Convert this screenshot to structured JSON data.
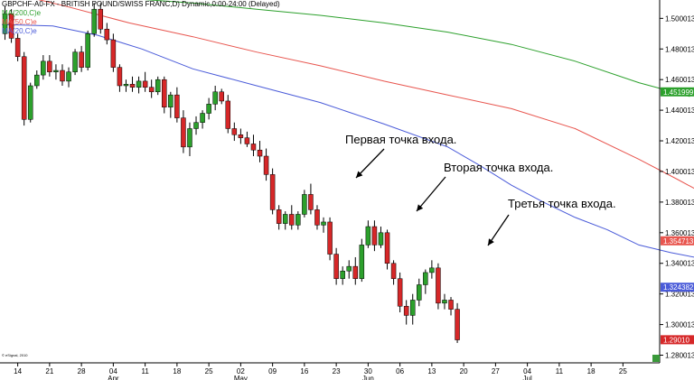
{
  "header": {
    "title": "GBPCHF-A0-FX - BRITISH POUND/SWISS FRANC,D) Dynamic,0:00-24:00 (Delayed)",
    "ma200": "MA(200,C)e",
    "ma50": "MA(50,C)e",
    "ma20": "MA(20,C)e"
  },
  "colors": {
    "ma200": "#2ca02c",
    "ma50": "#e8554e",
    "ma20": "#4a5bd9",
    "up": "#2ca02c",
    "down": "#d62728"
  },
  "annotations": [
    {
      "text": "Первая точка входа."
    },
    {
      "text": "Вторая точка входа."
    },
    {
      "text": "Третья точка входа."
    }
  ],
  "copyright": "© eSignal, 2010",
  "chart_data": {
    "type": "candlestick",
    "ylim": [
      1.275,
      1.512
    ],
    "y_ticks": [
      "1.500013",
      "1.480013",
      "1.460013",
      "1.440013",
      "1.420013",
      "1.400013",
      "1.380013",
      "1.360013",
      "1.340013",
      "1.320013",
      "1.300013",
      "1.280013"
    ],
    "x_ticks": [
      "14",
      "21",
      "28",
      "04",
      "11",
      "18",
      "25",
      "02",
      "09",
      "16",
      "23",
      "30",
      "06",
      "13",
      "20",
      "27",
      "04",
      "11",
      "18",
      "25"
    ],
    "month_labels": [
      "Apr",
      "May",
      "Jun",
      "Jul"
    ],
    "price_labels": [
      {
        "text": "1.451999",
        "value": 1.451999,
        "color": "#2ca02c"
      },
      {
        "text": "1.354713",
        "value": 1.354713,
        "color": "#e8554e"
      },
      {
        "text": "1.324382",
        "value": 1.324382,
        "color": "#4a5bd9"
      },
      {
        "text": "1.29010",
        "value": 1.2901,
        "color": "#d62728"
      }
    ],
    "ma200": [
      [
        0,
        1.519
      ],
      [
        10,
        1.516
      ],
      [
        20,
        1.513
      ],
      [
        30,
        1.51
      ],
      [
        40,
        1.506
      ],
      [
        50,
        1.502
      ],
      [
        60,
        1.497
      ],
      [
        70,
        1.491
      ],
      [
        80,
        1.483
      ],
      [
        90,
        1.472
      ],
      [
        100,
        1.458
      ],
      [
        108,
        1.449
      ]
    ],
    "ma50": [
      [
        0,
        1.518
      ],
      [
        10,
        1.508
      ],
      [
        20,
        1.497
      ],
      [
        30,
        1.488
      ],
      [
        40,
        1.478
      ],
      [
        50,
        1.469
      ],
      [
        60,
        1.459
      ],
      [
        70,
        1.45
      ],
      [
        80,
        1.441
      ],
      [
        90,
        1.428
      ],
      [
        100,
        1.408
      ],
      [
        106,
        1.395
      ],
      [
        110,
        1.386
      ],
      [
        115,
        1.376
      ],
      [
        120,
        1.365
      ],
      [
        124,
        1.357
      ]
    ],
    "ma20": [
      [
        0,
        1.496
      ],
      [
        8,
        1.495
      ],
      [
        15,
        1.489
      ],
      [
        22,
        1.48
      ],
      [
        30,
        1.467
      ],
      [
        40,
        1.456
      ],
      [
        50,
        1.445
      ],
      [
        60,
        1.431
      ],
      [
        70,
        1.416
      ],
      [
        75,
        1.404
      ],
      [
        80,
        1.391
      ],
      [
        85,
        1.38
      ],
      [
        90,
        1.37
      ],
      [
        95,
        1.362
      ],
      [
        100,
        1.352
      ],
      [
        105,
        1.347
      ],
      [
        110,
        1.343
      ],
      [
        115,
        1.338
      ],
      [
        120,
        1.33
      ],
      [
        124,
        1.325
      ]
    ],
    "candles": [
      [
        1.49,
        1.508,
        1.486,
        1.503
      ],
      [
        1.503,
        1.506,
        1.484,
        1.487
      ],
      [
        1.487,
        1.49,
        1.472,
        1.475
      ],
      [
        1.475,
        1.478,
        1.43,
        1.434
      ],
      [
        1.434,
        1.458,
        1.432,
        1.456
      ],
      [
        1.456,
        1.466,
        1.454,
        1.463
      ],
      [
        1.463,
        1.476,
        1.46,
        1.472
      ],
      [
        1.472,
        1.476,
        1.462,
        1.465
      ],
      [
        1.465,
        1.47,
        1.46,
        1.466
      ],
      [
        1.466,
        1.47,
        1.456,
        1.459
      ],
      [
        1.459,
        1.468,
        1.455,
        1.465
      ],
      [
        1.465,
        1.48,
        1.463,
        1.478
      ],
      [
        1.478,
        1.482,
        1.465,
        1.468
      ],
      [
        1.468,
        1.492,
        1.466,
        1.49
      ],
      [
        1.49,
        1.51,
        1.488,
        1.506
      ],
      [
        1.506,
        1.51,
        1.49,
        1.493
      ],
      [
        1.493,
        1.497,
        1.483,
        1.486
      ],
      [
        1.486,
        1.49,
        1.465,
        1.468
      ],
      [
        1.468,
        1.47,
        1.452,
        1.456
      ],
      [
        1.456,
        1.46,
        1.452,
        1.457
      ],
      [
        1.457,
        1.462,
        1.452,
        1.455
      ],
      [
        1.455,
        1.462,
        1.451,
        1.459
      ],
      [
        1.459,
        1.465,
        1.452,
        1.455
      ],
      [
        1.455,
        1.46,
        1.448,
        1.452
      ],
      [
        1.452,
        1.462,
        1.45,
        1.46
      ],
      [
        1.46,
        1.462,
        1.438,
        1.442
      ],
      [
        1.442,
        1.452,
        1.435,
        1.45
      ],
      [
        1.45,
        1.455,
        1.432,
        1.435
      ],
      [
        1.435,
        1.44,
        1.412,
        1.416
      ],
      [
        1.416,
        1.432,
        1.41,
        1.428
      ],
      [
        1.428,
        1.436,
        1.424,
        1.432
      ],
      [
        1.432,
        1.44,
        1.428,
        1.438
      ],
      [
        1.438,
        1.448,
        1.434,
        1.444
      ],
      [
        1.444,
        1.456,
        1.44,
        1.452
      ],
      [
        1.452,
        1.454,
        1.444,
        1.446
      ],
      [
        1.446,
        1.45,
        1.425,
        1.428
      ],
      [
        1.428,
        1.432,
        1.42,
        1.424
      ],
      [
        1.424,
        1.428,
        1.418,
        1.422
      ],
      [
        1.422,
        1.426,
        1.416,
        1.418
      ],
      [
        1.418,
        1.424,
        1.41,
        1.414
      ],
      [
        1.414,
        1.42,
        1.406,
        1.41
      ],
      [
        1.41,
        1.415,
        1.394,
        1.398
      ],
      [
        1.398,
        1.402,
        1.372,
        1.375
      ],
      [
        1.375,
        1.378,
        1.362,
        1.366
      ],
      [
        1.366,
        1.374,
        1.362,
        1.372
      ],
      [
        1.372,
        1.378,
        1.362,
        1.365
      ],
      [
        1.365,
        1.374,
        1.362,
        1.372
      ],
      [
        1.372,
        1.388,
        1.37,
        1.385
      ],
      [
        1.385,
        1.392,
        1.372,
        1.375
      ],
      [
        1.375,
        1.378,
        1.362,
        1.365
      ],
      [
        1.365,
        1.37,
        1.36,
        1.367
      ],
      [
        1.367,
        1.37,
        1.342,
        1.346
      ],
      [
        1.346,
        1.35,
        1.326,
        1.33
      ],
      [
        1.33,
        1.338,
        1.326,
        1.335
      ],
      [
        1.335,
        1.342,
        1.33,
        1.338
      ],
      [
        1.338,
        1.344,
        1.326,
        1.33
      ],
      [
        1.33,
        1.356,
        1.328,
        1.352
      ],
      [
        1.352,
        1.368,
        1.35,
        1.364
      ],
      [
        1.364,
        1.368,
        1.348,
        1.352
      ],
      [
        1.352,
        1.364,
        1.35,
        1.36
      ],
      [
        1.36,
        1.362,
        1.336,
        1.34
      ],
      [
        1.34,
        1.342,
        1.326,
        1.33
      ],
      [
        1.33,
        1.334,
        1.308,
        1.312
      ],
      [
        1.312,
        1.316,
        1.3,
        1.306
      ],
      [
        1.306,
        1.32,
        1.3,
        1.316
      ],
      [
        1.316,
        1.33,
        1.312,
        1.326
      ],
      [
        1.326,
        1.336,
        1.32,
        1.334
      ],
      [
        1.334,
        1.342,
        1.33,
        1.337
      ],
      [
        1.337,
        1.34,
        1.31,
        1.314
      ],
      [
        1.314,
        1.32,
        1.31,
        1.316
      ],
      [
        1.316,
        1.318,
        1.306,
        1.31
      ],
      [
        1.31,
        1.314,
        1.288,
        1.29
      ]
    ]
  }
}
